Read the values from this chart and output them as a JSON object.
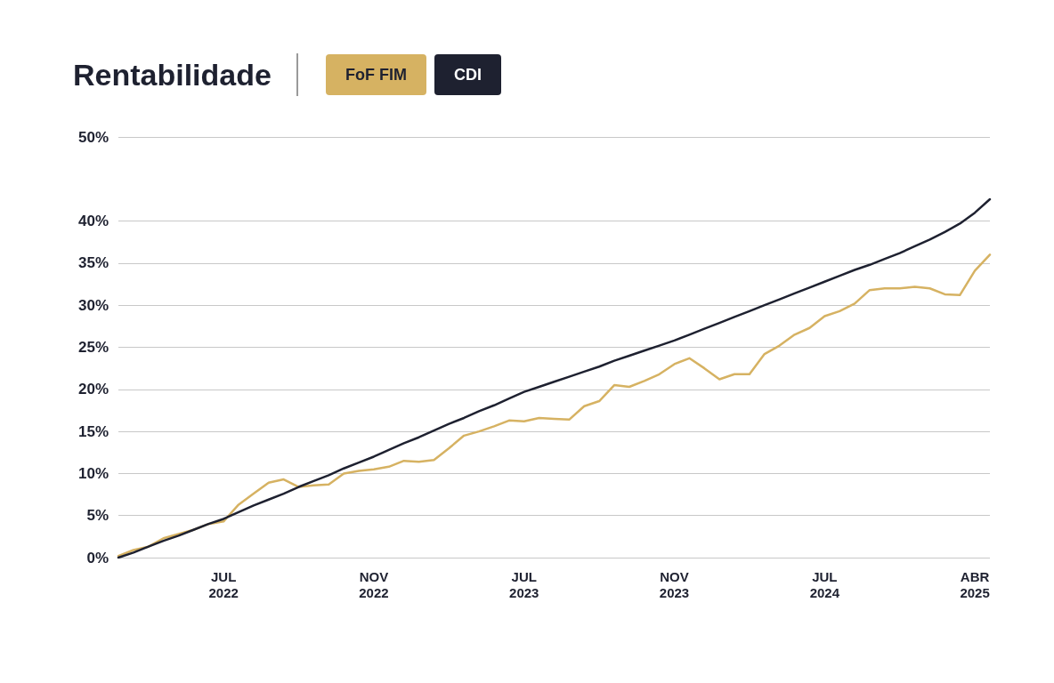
{
  "chart_data": {
    "type": "line",
    "title": "Rentabilidade",
    "categories": [
      null,
      null,
      null,
      null,
      null,
      null,
      null,
      "JUL 2022",
      null,
      null,
      null,
      null,
      null,
      null,
      null,
      null,
      null,
      "NOV 2022",
      null,
      null,
      null,
      null,
      null,
      null,
      null,
      null,
      null,
      "JUL 2023",
      null,
      null,
      null,
      null,
      null,
      null,
      null,
      null,
      null,
      "NOV 2023",
      null,
      null,
      null,
      null,
      null,
      null,
      null,
      null,
      null,
      "JUL 2024",
      null,
      null,
      null,
      null,
      null,
      null,
      null,
      null,
      null,
      "ABR 2025",
      null
    ],
    "series": [
      {
        "name": "FoF FIM",
        "color": "#d6b262",
        "values": [
          0.2,
          0.9,
          1.3,
          2.3,
          2.8,
          3.3,
          4.0,
          4.3,
          6.3,
          7.6,
          8.9,
          9.3,
          8.4,
          8.6,
          8.7,
          10.0,
          10.3,
          10.5,
          10.8,
          11.5,
          11.4,
          11.6,
          13.0,
          14.5,
          15.0,
          15.6,
          16.3,
          16.2,
          16.6,
          16.5,
          16.4,
          18.0,
          18.6,
          20.5,
          20.3,
          21.0,
          21.8,
          23.0,
          23.7,
          22.5,
          21.2,
          21.8,
          21.8,
          24.2,
          25.2,
          26.5,
          27.3,
          28.7,
          29.3,
          30.2,
          31.8,
          32.0,
          32.0,
          32.2,
          32.0,
          31.3,
          31.2,
          34.1,
          36.0
        ]
      },
      {
        "name": "CDI",
        "color": "#1e2130",
        "values": [
          0,
          0.6,
          1.3,
          2.0,
          2.6,
          3.3,
          4.0,
          4.6,
          5.4,
          6.2,
          6.9,
          7.6,
          8.4,
          9.1,
          9.8,
          10.6,
          11.3,
          12.0,
          12.8,
          13.6,
          14.3,
          15.1,
          15.9,
          16.6,
          17.4,
          18.1,
          18.9,
          19.7,
          20.3,
          20.9,
          21.5,
          22.1,
          22.7,
          23.4,
          24.0,
          24.6,
          25.2,
          25.8,
          26.5,
          27.2,
          27.9,
          28.6,
          29.3,
          30.0,
          30.7,
          31.4,
          32.1,
          32.8,
          33.5,
          34.2,
          34.8,
          35.5,
          36.2,
          37.0,
          37.8,
          38.7,
          39.7,
          41.0,
          42.6
        ]
      }
    ],
    "ylim": [
      0,
      50
    ],
    "yticks": [
      {
        "value": 0,
        "label": "0%"
      },
      {
        "value": 5,
        "label": "5%"
      },
      {
        "value": 10,
        "label": "10%"
      },
      {
        "value": 15,
        "label": "15%"
      },
      {
        "value": 20,
        "label": "20%"
      },
      {
        "value": 25,
        "label": "25%"
      },
      {
        "value": 30,
        "label": "30%"
      },
      {
        "value": 35,
        "label": "35%"
      },
      {
        "value": 40,
        "label": "40%"
      },
      {
        "value": 50,
        "label": "50%"
      }
    ],
    "grid": "y",
    "legend": "top left",
    "marker": "none",
    "line_style": "solid"
  }
}
